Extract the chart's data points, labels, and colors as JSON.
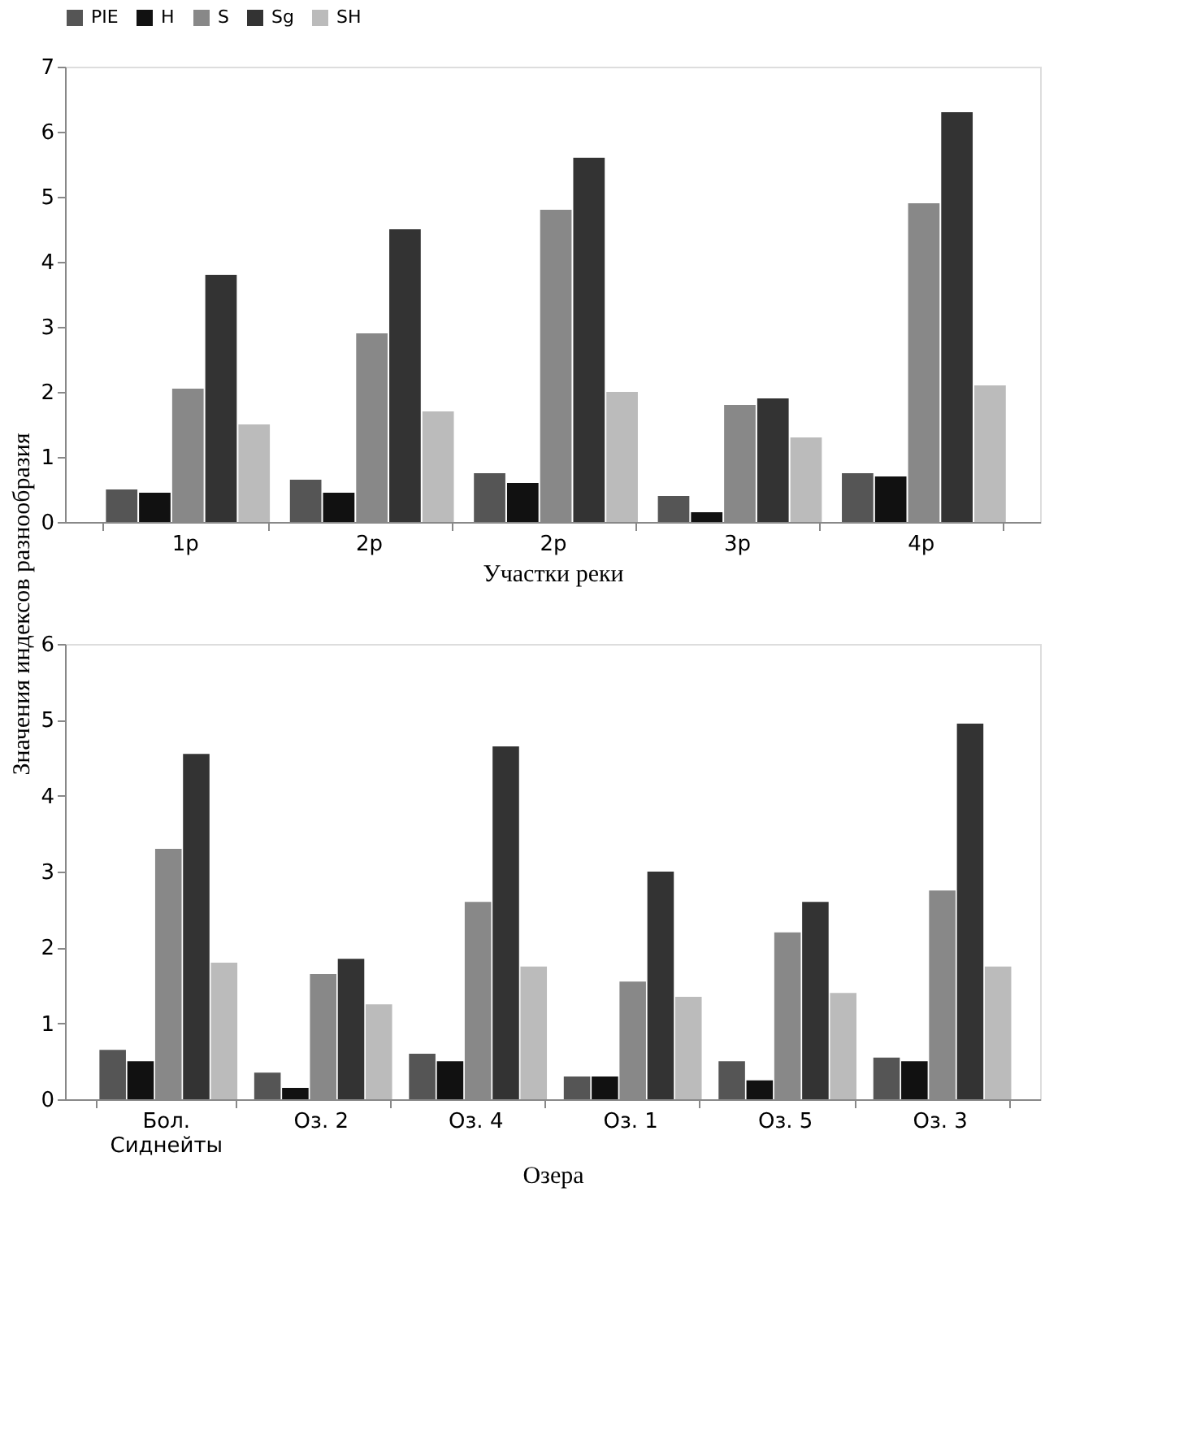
{
  "chart_data": [
    {
      "type": "bar",
      "xlabel": "Участки реки",
      "ylabel": "Значения индексов разнообразия",
      "categories": [
        "1р",
        "2р",
        "2р",
        "3р",
        "4р"
      ],
      "ylim": [
        0,
        7
      ],
      "yticks": [
        0,
        1,
        2,
        3,
        4,
        5,
        6,
        7
      ],
      "legend": "top",
      "grid": false,
      "series": [
        {
          "name": "PIE",
          "color": "#555555",
          "values": [
            0.5,
            0.65,
            0.75,
            0.4,
            0.75
          ]
        },
        {
          "name": "H",
          "color": "#111111",
          "values": [
            0.45,
            0.45,
            0.6,
            0.15,
            0.7
          ]
        },
        {
          "name": "S",
          "color": "#888888",
          "values": [
            2.05,
            2.9,
            4.8,
            1.8,
            4.9
          ]
        },
        {
          "name": "Sg",
          "color": "#333333",
          "values": [
            3.8,
            4.5,
            5.6,
            1.9,
            6.3
          ]
        },
        {
          "name": "SH",
          "color": "#bbbbbb",
          "values": [
            1.5,
            1.7,
            2.0,
            1.3,
            2.1
          ]
        }
      ]
    },
    {
      "type": "bar",
      "xlabel": "Озера",
      "categories": [
        "Бол.\nСиднейты",
        "Оз. 2",
        "Оз. 4",
        "Оз. 1",
        "Оз. 5",
        "Оз. 3"
      ],
      "ylim": [
        0,
        6
      ],
      "yticks": [
        0,
        1,
        2,
        3,
        4,
        5,
        6
      ],
      "grid": false,
      "series": [
        {
          "name": "PIE",
          "color": "#555555",
          "values": [
            0.65,
            0.35,
            0.6,
            0.3,
            0.5,
            0.55
          ]
        },
        {
          "name": "H",
          "color": "#111111",
          "values": [
            0.5,
            0.15,
            0.5,
            0.3,
            0.25,
            0.5
          ]
        },
        {
          "name": "S",
          "color": "#888888",
          "values": [
            3.3,
            1.65,
            2.6,
            1.55,
            2.2,
            2.75
          ]
        },
        {
          "name": "Sg",
          "color": "#333333",
          "values": [
            4.55,
            1.85,
            4.65,
            3.0,
            2.6,
            4.95
          ]
        },
        {
          "name": "SH",
          "color": "#bbbbbb",
          "values": [
            1.8,
            1.25,
            1.75,
            1.35,
            1.4,
            1.75
          ]
        }
      ]
    }
  ]
}
